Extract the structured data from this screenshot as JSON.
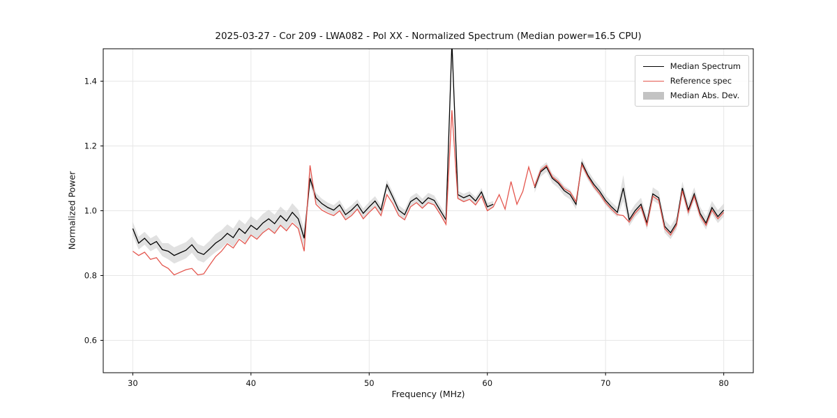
{
  "chart_data": {
    "type": "line",
    "title": "2025-03-27 - Cor 209 - LWA082 - Pol XX - Normalized Spectrum (Median power=16.5 CPU)",
    "xlabel": "Frequency (MHz)",
    "ylabel": "Normalized Power",
    "xlim": [
      27.5,
      82.5
    ],
    "ylim": [
      0.5,
      1.5
    ],
    "xticks": [
      30,
      40,
      50,
      60,
      70,
      80
    ],
    "xtick_labels": [
      "30",
      "40",
      "50",
      "60",
      "70",
      "80"
    ],
    "yticks": [
      0.6,
      0.8,
      1.0,
      1.2,
      1.4
    ],
    "ytick_labels": [
      "0.6",
      "0.8",
      "1.0",
      "1.2",
      "1.4"
    ],
    "grid": true,
    "grid_color": "#e6e6e6",
    "axis_color": "#000000",
    "x_start": 30.0,
    "x_step": 0.5,
    "legend": {
      "position": "upper right",
      "items": [
        {
          "label": "Median Spectrum",
          "type": "line",
          "color": "#000000"
        },
        {
          "label": "Reference spec",
          "type": "line",
          "color": "#e4564e"
        },
        {
          "label": "Median Abs. Dev.",
          "type": "band",
          "color": "#c3c3c3"
        }
      ]
    },
    "series": [
      {
        "name": "Median Spectrum",
        "type": "line",
        "color": "#000000",
        "values": [
          0.945,
          0.9,
          0.915,
          0.895,
          0.905,
          0.88,
          0.875,
          0.862,
          0.87,
          0.878,
          0.895,
          0.872,
          0.865,
          0.882,
          0.9,
          0.912,
          0.93,
          0.917,
          0.945,
          0.93,
          0.955,
          0.942,
          0.962,
          0.975,
          0.96,
          0.985,
          0.968,
          0.995,
          0.975,
          0.915,
          1.1,
          1.04,
          1.022,
          1.01,
          1.002,
          1.018,
          0.988,
          1.002,
          1.02,
          0.992,
          1.012,
          1.03,
          1.002,
          1.08,
          1.042,
          1.002,
          0.988,
          1.028,
          1.04,
          1.022,
          1.04,
          1.032,
          1.002,
          0.972,
          1.52,
          1.05,
          1.04,
          1.048,
          1.03,
          1.058,
          1.012,
          1.02,
          null,
          null,
          null,
          null,
          null,
          null,
          1.07,
          1.12,
          1.135,
          1.1,
          1.085,
          1.062,
          1.05,
          1.02,
          1.148,
          1.11,
          1.082,
          1.06,
          1.032,
          1.012,
          0.995,
          1.07,
          0.972,
          1.0,
          1.02,
          0.962,
          1.052,
          1.04,
          0.952,
          0.932,
          0.962,
          1.07,
          1.002,
          1.052,
          0.992,
          0.962,
          1.01,
          0.982,
          1.002
        ]
      },
      {
        "name": "Reference spec",
        "type": "line",
        "color": "#e4564e",
        "values": [
          0.875,
          0.862,
          0.872,
          0.85,
          0.855,
          0.832,
          0.822,
          0.802,
          0.81,
          0.818,
          0.822,
          0.802,
          0.805,
          0.832,
          0.858,
          0.875,
          0.898,
          0.885,
          0.912,
          0.898,
          0.925,
          0.912,
          0.932,
          0.945,
          0.93,
          0.955,
          0.938,
          0.962,
          0.945,
          0.875,
          1.14,
          1.02,
          1.002,
          0.992,
          0.985,
          1.0,
          0.972,
          0.985,
          1.005,
          0.975,
          0.995,
          1.012,
          0.985,
          1.05,
          1.022,
          0.985,
          0.972,
          1.012,
          1.025,
          1.008,
          1.025,
          1.018,
          0.99,
          0.958,
          1.31,
          1.038,
          1.028,
          1.035,
          1.018,
          1.045,
          1.0,
          1.012,
          1.05,
          1.005,
          1.09,
          1.02,
          1.06,
          1.135,
          1.075,
          1.125,
          1.14,
          1.105,
          1.09,
          1.068,
          1.058,
          1.028,
          1.142,
          1.105,
          1.075,
          1.052,
          1.025,
          1.005,
          0.988,
          0.985,
          0.965,
          0.992,
          1.012,
          0.955,
          1.045,
          1.032,
          0.945,
          0.925,
          0.955,
          1.062,
          0.995,
          1.045,
          0.985,
          0.955,
          1.002,
          0.975,
          0.995
        ]
      },
      {
        "name": "Median Abs. Dev.",
        "type": "band",
        "color": "#c8c8c8",
        "opacity": 0.55,
        "values": [
          0.02,
          0.02,
          0.02,
          0.02,
          0.02,
          0.02,
          0.025,
          0.025,
          0.025,
          0.025,
          0.025,
          0.025,
          0.025,
          0.025,
          0.028,
          0.028,
          0.028,
          0.028,
          0.028,
          0.028,
          0.028,
          0.028,
          0.028,
          0.028,
          0.028,
          0.028,
          0.028,
          0.028,
          0.028,
          0.028,
          0.02,
          0.015,
          0.015,
          0.015,
          0.015,
          0.015,
          0.015,
          0.015,
          0.015,
          0.015,
          0.015,
          0.015,
          0.015,
          0.015,
          0.015,
          0.015,
          0.015,
          0.015,
          0.015,
          0.015,
          0.015,
          0.015,
          0.015,
          0.015,
          0.01,
          0.012,
          0.012,
          0.012,
          0.012,
          0.012,
          0.012,
          0.01,
          0.004,
          0.004,
          0.004,
          0.004,
          0.004,
          0.004,
          0.015,
          0.015,
          0.015,
          0.015,
          0.015,
          0.015,
          0.015,
          0.015,
          0.015,
          0.015,
          0.015,
          0.015,
          0.015,
          0.015,
          0.015,
          0.04,
          0.02,
          0.02,
          0.02,
          0.02,
          0.02,
          0.02,
          0.02,
          0.02,
          0.02,
          0.02,
          0.02,
          0.02,
          0.02,
          0.02,
          0.02,
          0.02,
          0.02
        ]
      }
    ]
  }
}
